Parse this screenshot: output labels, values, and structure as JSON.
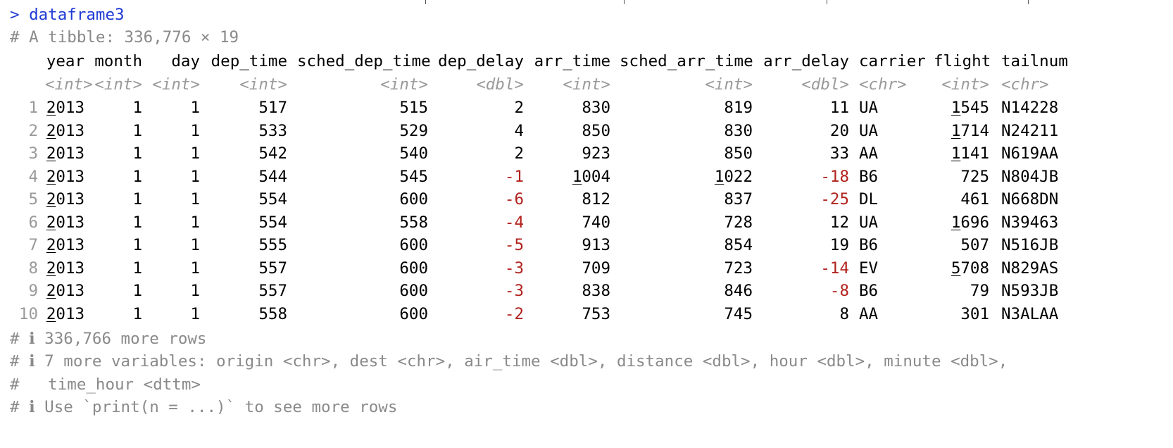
{
  "prompt": ">",
  "command": "dataframe3",
  "summary": "# A tibble: 336,776 × 19",
  "columns": [
    {
      "name": "year",
      "type": "<int>",
      "align": "r"
    },
    {
      "name": "month",
      "type": "<int>",
      "align": "r"
    },
    {
      "name": "day",
      "type": "<int>",
      "align": "r"
    },
    {
      "name": "dep_time",
      "type": "<int>",
      "align": "r"
    },
    {
      "name": "sched_dep_time",
      "type": "<int>",
      "align": "r"
    },
    {
      "name": "dep_delay",
      "type": "<dbl>",
      "align": "r"
    },
    {
      "name": "arr_time",
      "type": "<int>",
      "align": "r"
    },
    {
      "name": "sched_arr_time",
      "type": "<int>",
      "align": "r"
    },
    {
      "name": "arr_delay",
      "type": "<dbl>",
      "align": "r"
    },
    {
      "name": "carrier",
      "type": "<chr>",
      "align": "l"
    },
    {
      "name": "flight",
      "type": "<int>",
      "align": "r"
    },
    {
      "name": "tailnum",
      "type": "<chr>",
      "align": "l"
    }
  ],
  "rows": [
    [
      "1",
      "2013",
      "1",
      "1",
      "517",
      "515",
      "2",
      "830",
      "819",
      "11",
      "UA",
      "1545",
      "N14228"
    ],
    [
      "2",
      "2013",
      "1",
      "1",
      "533",
      "529",
      "4",
      "850",
      "830",
      "20",
      "UA",
      "1714",
      "N24211"
    ],
    [
      "3",
      "2013",
      "1",
      "1",
      "542",
      "540",
      "2",
      "923",
      "850",
      "33",
      "AA",
      "1141",
      "N619AA"
    ],
    [
      "4",
      "2013",
      "1",
      "1",
      "544",
      "545",
      "-1",
      "1004",
      "1022",
      "-18",
      "B6",
      "725",
      "N804JB"
    ],
    [
      "5",
      "2013",
      "1",
      "1",
      "554",
      "600",
      "-6",
      "812",
      "837",
      "-25",
      "DL",
      "461",
      "N668DN"
    ],
    [
      "6",
      "2013",
      "1",
      "1",
      "554",
      "558",
      "-4",
      "740",
      "728",
      "12",
      "UA",
      "1696",
      "N39463"
    ],
    [
      "7",
      "2013",
      "1",
      "1",
      "555",
      "600",
      "-5",
      "913",
      "854",
      "19",
      "B6",
      "507",
      "N516JB"
    ],
    [
      "8",
      "2013",
      "1",
      "1",
      "557",
      "600",
      "-3",
      "709",
      "723",
      "-14",
      "EV",
      "5708",
      "N829AS"
    ],
    [
      "9",
      "2013",
      "1",
      "1",
      "557",
      "600",
      "-3",
      "838",
      "846",
      "-8",
      "B6",
      "79",
      "N593JB"
    ],
    [
      "10",
      "2013",
      "1",
      "1",
      "558",
      "600",
      "-2",
      "753",
      "745",
      "8",
      "AA",
      "301",
      "N3ALAA"
    ]
  ],
  "footer": [
    "# ℹ 336,766 more rows",
    "# ℹ 7 more variables: origin <chr>, dest <chr>, air_time <dbl>, distance <dbl>, hour <dbl>, minute <dbl>,",
    "#   time_hour <dttm>",
    "# ℹ Use `print(n = ...)` to see more rows"
  ],
  "colors": {
    "command": "#1f3ad6",
    "comment": "#8a8a8a",
    "type": "#9a9a9a",
    "negative": "#b2221d",
    "text": "#000000",
    "background": "#ffffff"
  }
}
